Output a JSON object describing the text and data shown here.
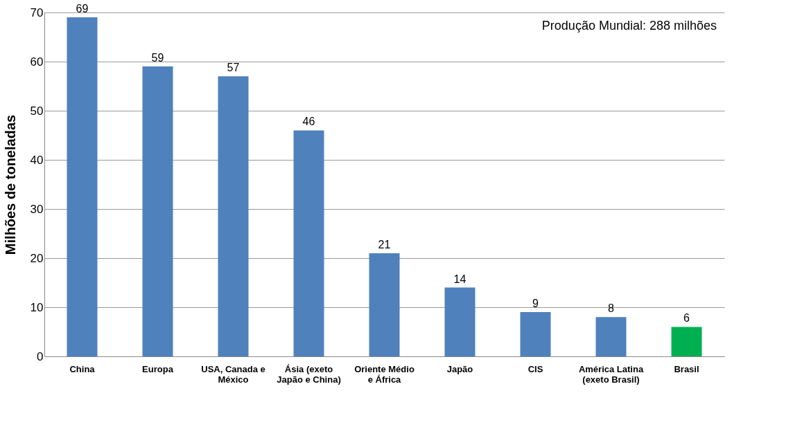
{
  "chart_data": {
    "type": "bar",
    "ylabel": "Milhões de toneladas",
    "categories": [
      "China",
      "Europa",
      "USA, Canada e México",
      "Ásia (exeto Japão e China)",
      "Oriente Médio e África",
      "Japão",
      "CIS",
      "América Latina (exeto Brasil)",
      "Brasil"
    ],
    "values": [
      69,
      59,
      57,
      46,
      21,
      14,
      9,
      8,
      6
    ],
    "colors": [
      "#4f81bd",
      "#4f81bd",
      "#4f81bd",
      "#4f81bd",
      "#4f81bd",
      "#4f81bd",
      "#4f81bd",
      "#4f81bd",
      "#00b050"
    ],
    "ylim": [
      0,
      70
    ],
    "yticks": [
      0,
      10,
      20,
      30,
      40,
      50,
      60,
      70
    ],
    "grid": "y",
    "data_labels": true,
    "annotations": [
      "Produção Mundial: 288 milhões"
    ]
  }
}
